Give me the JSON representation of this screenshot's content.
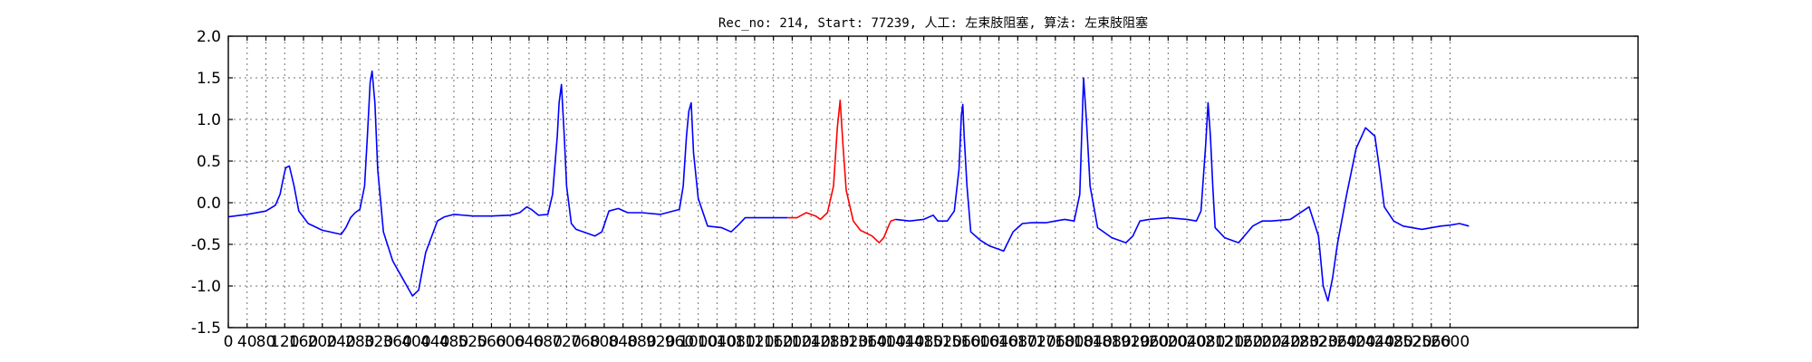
{
  "chart_data": {
    "type": "line",
    "title": "Rec_no: 214, Start: 77239, 人工: 左束肢阻塞, 算法: 左束肢阻塞",
    "xlabel": "",
    "ylabel": "",
    "xlim": [
      0,
      3000
    ],
    "ylim": [
      -1.5,
      2.0
    ],
    "xticks": [
      0,
      40,
      80,
      120,
      160,
      200,
      240,
      280,
      320,
      360,
      400,
      440,
      480,
      520,
      560,
      600,
      640,
      680,
      720,
      760,
      800,
      840,
      880,
      920,
      960,
      1000,
      1040,
      1080,
      1120,
      1160,
      1200,
      1240,
      1280,
      1320,
      1360,
      1400,
      1440,
      1480,
      1520,
      1560,
      1600,
      1640,
      1680,
      1720,
      1760,
      1800,
      1840,
      1880,
      1920,
      1960,
      2000,
      2040,
      2080,
      2120,
      2160,
      2200,
      2240,
      2280,
      2320,
      2360,
      2400,
      2440,
      2480,
      2520,
      2560,
      2600
    ],
    "yticks": [
      "-1.5",
      "-1.0",
      "-0.5",
      "0.0",
      "0.5",
      "1.0",
      "1.5",
      "2.0"
    ],
    "grid": true,
    "series": [
      {
        "color": "#0000ff",
        "x": [
          0,
          40,
          80,
          100,
          110,
          118,
          122,
          130,
          140,
          150,
          170,
          200,
          240,
          250,
          260,
          270,
          280,
          290,
          296,
          302,
          306,
          312,
          318,
          330,
          350,
          370,
          385,
          392,
          405,
          420,
          445,
          460,
          480,
          520,
          560,
          600,
          620,
          635,
          645,
          660,
          680,
          690,
          700,
          704,
          709,
          715,
          720,
          730,
          740,
          780,
          795,
          810,
          830,
          850,
          880,
          920,
          960,
          968,
          975,
          980,
          985,
          990,
          1000,
          1020,
          1050,
          1070,
          1085,
          1100,
          1130,
          1190
        ],
        "y": [
          -0.17,
          -0.14,
          -0.1,
          -0.03,
          0.1,
          0.32,
          0.42,
          0.44,
          0.2,
          -0.1,
          -0.25,
          -0.33,
          -0.38,
          -0.3,
          -0.18,
          -0.12,
          -0.08,
          0.2,
          0.8,
          1.45,
          1.58,
          1.2,
          0.4,
          -0.35,
          -0.7,
          -0.9,
          -1.05,
          -1.12,
          -1.05,
          -0.6,
          -0.22,
          -0.17,
          -0.14,
          -0.16,
          -0.16,
          -0.15,
          -0.12,
          -0.05,
          -0.08,
          -0.15,
          -0.14,
          0.1,
          0.8,
          1.2,
          1.42,
          0.8,
          0.2,
          -0.25,
          -0.32,
          -0.4,
          -0.35,
          -0.1,
          -0.07,
          -0.12,
          -0.12,
          -0.14,
          -0.08,
          0.2,
          0.8,
          1.1,
          1.2,
          0.6,
          0.05,
          -0.28,
          -0.3,
          -0.35,
          -0.27,
          -0.18,
          -0.18,
          -0.18
        ]
      },
      {
        "color": "#ff0000",
        "x": [
          1190,
          1210,
          1230,
          1250,
          1260,
          1275,
          1288,
          1296,
          1302,
          1308,
          1315,
          1330,
          1345,
          1370,
          1385,
          1395,
          1405,
          1410,
          1420
        ],
        "y": [
          -0.18,
          -0.18,
          -0.12,
          -0.16,
          -0.2,
          -0.12,
          0.2,
          0.9,
          1.23,
          0.7,
          0.15,
          -0.22,
          -0.33,
          -0.4,
          -0.48,
          -0.42,
          -0.28,
          -0.22,
          -0.2
        ]
      },
      {
        "color": "#0000ff",
        "x": [
          1420,
          1450,
          1480,
          1500,
          1510,
          1530,
          1545,
          1555,
          1560,
          1563,
          1566,
          1572,
          1580,
          1600,
          1620,
          1650,
          1670,
          1690,
          1710,
          1740,
          1760,
          1780,
          1800,
          1812,
          1816,
          1820,
          1826,
          1834,
          1850,
          1880,
          1910,
          1925,
          1940,
          1960,
          2000,
          2040,
          2060,
          2070,
          2080,
          2085,
          2090,
          2095,
          2100,
          2120,
          2150,
          2180,
          2200,
          2220,
          2260,
          2300,
          2320,
          2330,
          2340,
          2350,
          2360,
          2380,
          2400,
          2420,
          2440,
          2450,
          2460,
          2480,
          2500,
          2540,
          2580,
          2600,
          2620,
          2640
        ],
        "y": [
          -0.2,
          -0.22,
          -0.2,
          -0.15,
          -0.22,
          -0.22,
          -0.1,
          0.4,
          1.05,
          1.18,
          0.8,
          0.2,
          -0.35,
          -0.45,
          -0.52,
          -0.58,
          -0.35,
          -0.25,
          -0.24,
          -0.24,
          -0.22,
          -0.2,
          -0.22,
          0.1,
          0.8,
          1.5,
          1.0,
          0.2,
          -0.3,
          -0.42,
          -0.48,
          -0.4,
          -0.22,
          -0.2,
          -0.18,
          -0.2,
          -0.22,
          -0.1,
          0.7,
          1.2,
          0.8,
          0.2,
          -0.3,
          -0.42,
          -0.48,
          -0.28,
          -0.22,
          -0.22,
          -0.2,
          -0.05,
          -0.4,
          -1.0,
          -1.18,
          -0.9,
          -0.5,
          0.1,
          0.65,
          0.9,
          0.8,
          0.4,
          -0.05,
          -0.22,
          -0.28,
          -0.32,
          -0.28,
          -0.27,
          -0.25,
          -0.28
        ]
      }
    ]
  }
}
